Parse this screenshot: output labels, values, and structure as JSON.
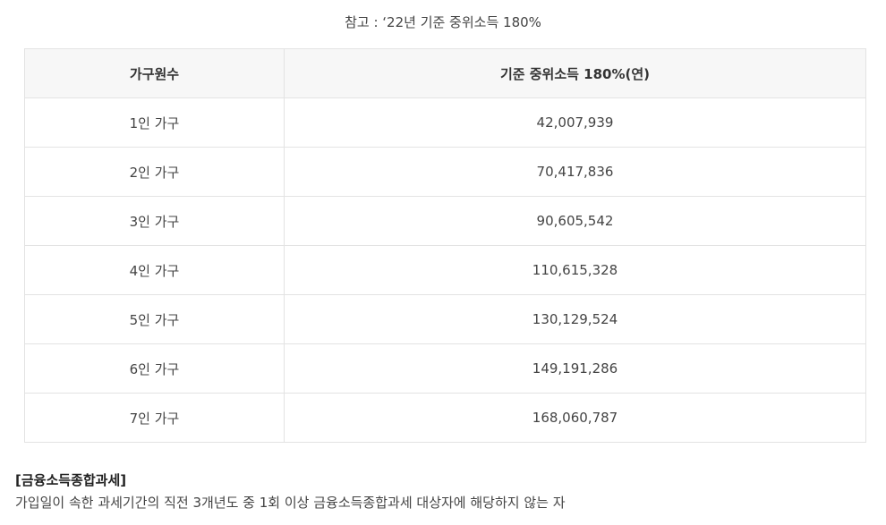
{
  "caption": "참고 : ‘22년 기준 중위소득 180%",
  "table": {
    "headers": [
      "가구원수",
      "기준 중위소득 180%(연)"
    ],
    "rows": [
      [
        "1인 가구",
        "42,007,939"
      ],
      [
        "2인 가구",
        "70,417,836"
      ],
      [
        "3인 가구",
        "90,605,542"
      ],
      [
        "4인 가구",
        "110,615,328"
      ],
      [
        "5인 가구",
        "130,129,524"
      ],
      [
        "6인 가구",
        "149,191,286"
      ],
      [
        "7인 가구",
        "168,060,787"
      ]
    ]
  },
  "section": {
    "title": "[금융소득종합과세]",
    "description": "가입일이 속한 과세기간의 직전 3개년도 중 1회 이상 금융소득종합과세 대상자에 해당하지 않는 자"
  }
}
